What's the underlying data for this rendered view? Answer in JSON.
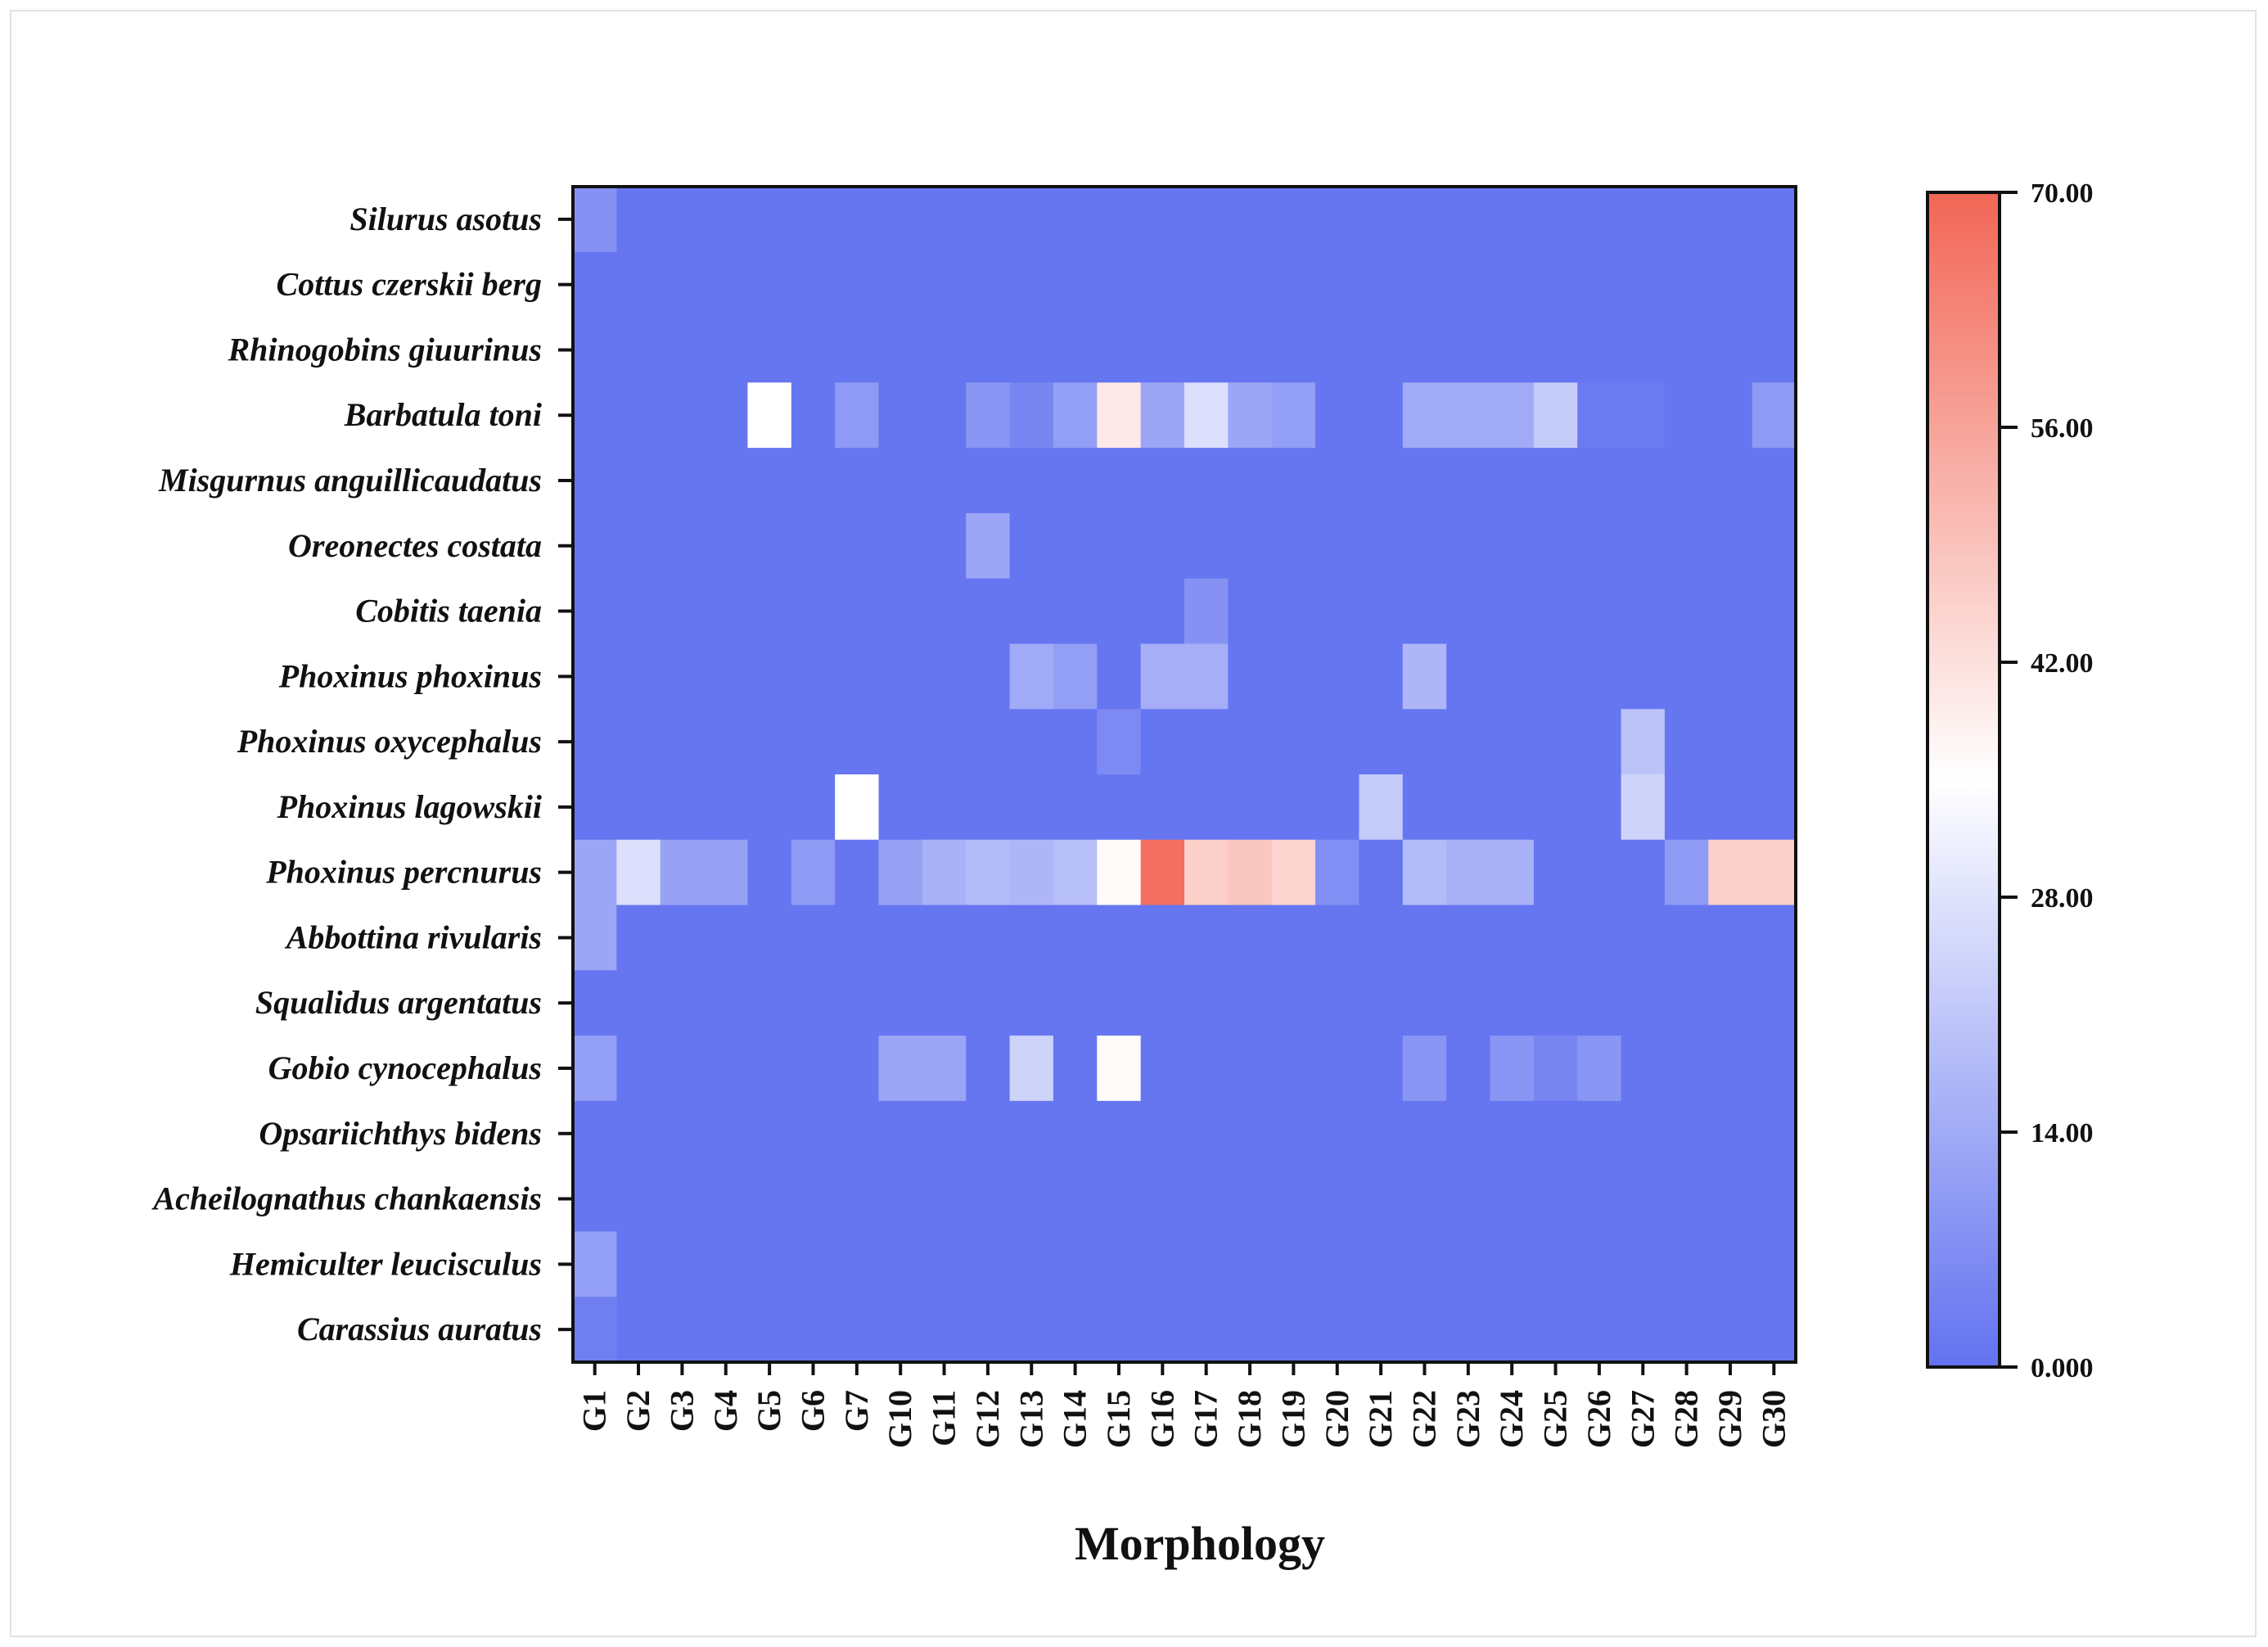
{
  "chart_data": {
    "type": "heatmap",
    "title": "",
    "xlabel": "Morphology",
    "ylabel": "",
    "x_categories": [
      "G1",
      "G2",
      "G3",
      "G4",
      "G5",
      "G6",
      "G7",
      "G10",
      "G11",
      "G12",
      "G13",
      "G14",
      "G15",
      "G16",
      "G17",
      "G18",
      "G19",
      "G20",
      "G21",
      "G22",
      "G23",
      "G24",
      "G25",
      "G26",
      "G27",
      "G28",
      "G29",
      "G30"
    ],
    "y_categories": [
      "Silurus asotus",
      "Cottus czerskii berg",
      "Rhinogobins giuurinus",
      "Barbatula toni",
      "Misgurnus anguillicaudatus",
      "Oreonectes costata",
      "Cobitis taenia",
      "Phoxinus phoxinus",
      "Phoxinus oxycephalus",
      "Phoxinus lagowskii",
      "Phoxinus percnurus",
      "Abbottina rivularis",
      "Squalidus argentatus",
      "Gobio cynocephalus",
      "Opsariichthys bidens",
      "Acheilognathus chankaensis",
      "Hemiculter leucisculus",
      "Carassius auratus"
    ],
    "values": [
      [
        8,
        1,
        1,
        1,
        1,
        1,
        1,
        1,
        1,
        1,
        1,
        1,
        1,
        1,
        1,
        1,
        1,
        1,
        1,
        1,
        1,
        1,
        1,
        1,
        1,
        1,
        1,
        1
      ],
      [
        1,
        1,
        1,
        1,
        1,
        1,
        1,
        1,
        1,
        1,
        1,
        1,
        1,
        1,
        1,
        1,
        1,
        1,
        1,
        1,
        1,
        1,
        1,
        1,
        1,
        1,
        1,
        1
      ],
      [
        1,
        1,
        1,
        1,
        1,
        1,
        1,
        1,
        1,
        1,
        1,
        1,
        1,
        1,
        1,
        1,
        1,
        1,
        1,
        1,
        1,
        1,
        1,
        1,
        1,
        1,
        1,
        1
      ],
      [
        1,
        1,
        1,
        1,
        35,
        1,
        10,
        1,
        1,
        9,
        5,
        11,
        40,
        13,
        27,
        13,
        11,
        1,
        1,
        14,
        14,
        14,
        22,
        2,
        2,
        1,
        1,
        10
      ],
      [
        1,
        1,
        1,
        1,
        1,
        1,
        1,
        1,
        1,
        1,
        1,
        1,
        1,
        1,
        1,
        1,
        1,
        1,
        1,
        1,
        1,
        1,
        1,
        1,
        1,
        1,
        1,
        1
      ],
      [
        1,
        1,
        1,
        1,
        1,
        1,
        1,
        1,
        1,
        13,
        1,
        1,
        1,
        1,
        1,
        1,
        1,
        1,
        1,
        1,
        1,
        1,
        1,
        1,
        1,
        1,
        1,
        1
      ],
      [
        1,
        1,
        1,
        1,
        1,
        1,
        1,
        1,
        1,
        1,
        1,
        1,
        1,
        1,
        8,
        1,
        1,
        1,
        1,
        1,
        1,
        1,
        1,
        1,
        1,
        1,
        1,
        1
      ],
      [
        1,
        1,
        1,
        1,
        1,
        1,
        1,
        1,
        1,
        1,
        14,
        11,
        1,
        15,
        15,
        1,
        1,
        1,
        1,
        17,
        1,
        1,
        1,
        1,
        1,
        1,
        1,
        1
      ],
      [
        1,
        1,
        1,
        1,
        1,
        1,
        1,
        1,
        1,
        1,
        1,
        1,
        6,
        1,
        1,
        1,
        1,
        1,
        1,
        1,
        1,
        1,
        1,
        1,
        20,
        1,
        1,
        1
      ],
      [
        1,
        1,
        1,
        1,
        1,
        1,
        35,
        1,
        1,
        1,
        1,
        1,
        1,
        1,
        1,
        1,
        1,
        1,
        22,
        1,
        1,
        1,
        1,
        1,
        24,
        1,
        1,
        1
      ],
      [
        13,
        27,
        12,
        12,
        1,
        10,
        1,
        12,
        16,
        18,
        17,
        19,
        36,
        68,
        46,
        48,
        45,
        7,
        1,
        18,
        16,
        16,
        1,
        1,
        1,
        10,
        46,
        46
      ],
      [
        13,
        1,
        1,
        1,
        1,
        1,
        1,
        1,
        1,
        1,
        1,
        1,
        1,
        1,
        1,
        1,
        1,
        1,
        1,
        1,
        1,
        1,
        1,
        1,
        1,
        1,
        1,
        1
      ],
      [
        1,
        1,
        1,
        1,
        1,
        1,
        1,
        1,
        1,
        1,
        1,
        1,
        1,
        1,
        1,
        1,
        1,
        1,
        1,
        1,
        1,
        1,
        1,
        1,
        1,
        1,
        1,
        1
      ],
      [
        11,
        1,
        1,
        1,
        1,
        1,
        1,
        13,
        13,
        1,
        24,
        1,
        36,
        1,
        1,
        1,
        1,
        1,
        1,
        9,
        1,
        9,
        5,
        9,
        1,
        1,
        1,
        1
      ],
      [
        1,
        1,
        1,
        1,
        1,
        1,
        1,
        1,
        1,
        1,
        1,
        1,
        1,
        1,
        1,
        1,
        1,
        1,
        1,
        1,
        1,
        1,
        1,
        1,
        1,
        1,
        1,
        1
      ],
      [
        1,
        1,
        1,
        1,
        1,
        1,
        1,
        1,
        1,
        1,
        1,
        1,
        1,
        1,
        1,
        1,
        1,
        1,
        1,
        1,
        1,
        1,
        1,
        1,
        1,
        1,
        1,
        1
      ],
      [
        11,
        1,
        1,
        1,
        1,
        1,
        1,
        1,
        1,
        1,
        1,
        1,
        1,
        1,
        1,
        1,
        1,
        1,
        1,
        1,
        1,
        1,
        1,
        1,
        1,
        1,
        1,
        1
      ],
      [
        3,
        1,
        1,
        1,
        1,
        1,
        1,
        1,
        1,
        1,
        1,
        1,
        1,
        1,
        1,
        1,
        1,
        1,
        1,
        1,
        1,
        1,
        1,
        1,
        1,
        1,
        1,
        1
      ]
    ],
    "colorbar": {
      "min": 0,
      "max": 70,
      "ticks": [
        0,
        14,
        28,
        42,
        56,
        70
      ],
      "tick_labels": [
        "0.000",
        "14.00",
        "28.00",
        "42.00",
        "56.00",
        "70.00"
      ],
      "colors": [
        "#6272f0",
        "#ffffff",
        "#f26656"
      ]
    }
  }
}
